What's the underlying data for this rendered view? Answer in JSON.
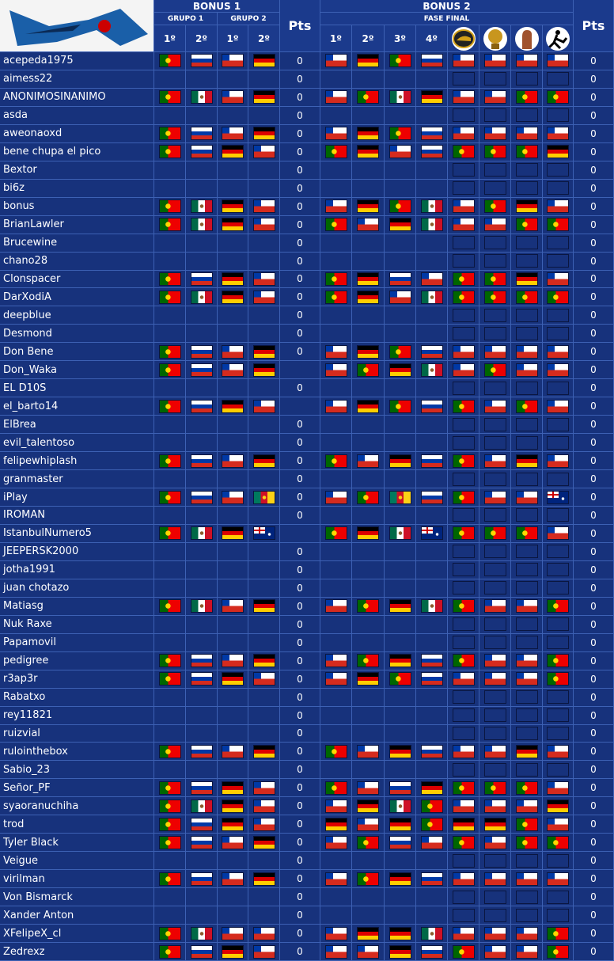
{
  "header": {
    "bonus1": "BONUS 1",
    "grupo1": "GRUPO 1",
    "grupo2": "GRUPO 2",
    "pts1": "Pts",
    "bonus2": "BONUS 2",
    "fase_final": "FASE FINAL",
    "pts2": "Pts",
    "bonus1_columns": [
      "1º",
      "2º",
      "1º",
      "2º"
    ],
    "bonus2_columns": [
      "1º",
      "2º",
      "3º",
      "4º"
    ]
  },
  "rows": [
    [
      "acepeda1975",
      0,
      0
    ],
    [
      "aimess22",
      0,
      0
    ],
    [
      "ANONIMOSINANIMO",
      0,
      0
    ],
    [
      "asda",
      0,
      0
    ],
    [
      "aweonaoxd",
      0,
      0
    ],
    [
      "bene chupa el pico",
      0,
      0
    ],
    [
      "Bextor",
      0,
      0
    ],
    [
      "bi6z",
      0,
      0
    ],
    [
      "bonus",
      0,
      0
    ],
    [
      "BrianLawler",
      0,
      0
    ],
    [
      "Brucewine",
      0,
      0
    ],
    [
      "chano28",
      0,
      0
    ],
    [
      "Clonspacer",
      0,
      0
    ],
    [
      "DarXodiA",
      0,
      0
    ],
    [
      "deepblue",
      0,
      0
    ],
    [
      "Desmond",
      0,
      0
    ],
    [
      "Don Bene",
      0,
      0
    ],
    [
      "Don_Waka",
      null,
      0
    ],
    [
      "EL D10S",
      0,
      0
    ],
    [
      "el_barto14",
      null,
      0
    ],
    [
      "ElBrea",
      0,
      0
    ],
    [
      "evil_talentoso",
      0,
      0
    ],
    [
      "felipewhiplash",
      0,
      0
    ],
    [
      "granmaster",
      0,
      0
    ],
    [
      "iPlay",
      0,
      0
    ],
    [
      "IROMAN",
      0,
      0
    ],
    [
      "IstanbulNumero5",
      null,
      0
    ],
    [
      "JEEPERSK2000",
      0,
      0
    ],
    [
      "jotha1991",
      0,
      0
    ],
    [
      "juan chotazo",
      0,
      0
    ],
    [
      "Matiasg",
      0,
      0
    ],
    [
      "Nuk Raxe",
      0,
      0
    ],
    [
      "Papamovil",
      0,
      0
    ],
    [
      "pedigree",
      0,
      0
    ],
    [
      "r3ap3r",
      0,
      0
    ],
    [
      "Rabatxo",
      0,
      0
    ],
    [
      "rey11821",
      0,
      0
    ],
    [
      "ruizvial",
      0,
      0
    ],
    [
      "rulointhebox",
      0,
      0
    ],
    [
      "Sabio_23",
      0,
      0
    ],
    [
      "Señor_PF",
      0,
      0
    ],
    [
      "syaoranuchiha",
      0,
      0
    ],
    [
      "trod",
      0,
      0
    ],
    [
      "Tyler Black",
      0,
      0
    ],
    [
      "Veigue",
      0,
      0
    ],
    [
      "virilman",
      0,
      0
    ],
    [
      "Von Bismarck",
      0,
      0
    ],
    [
      "Xander Anton",
      0,
      0
    ],
    [
      "XFelipeX_cl",
      0,
      0
    ],
    [
      "Zedrexz",
      0,
      0
    ]
  ]
}
